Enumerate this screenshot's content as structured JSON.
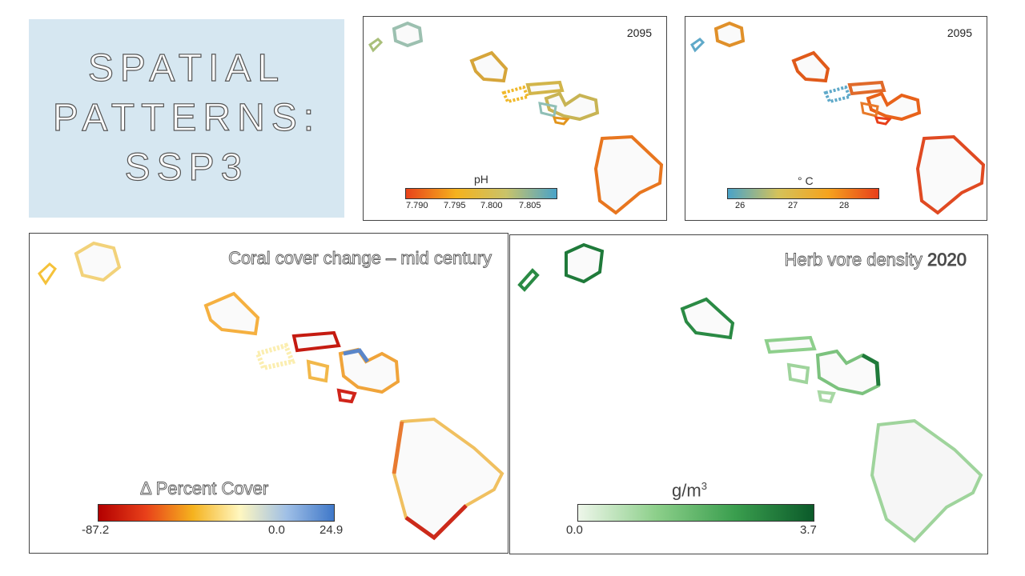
{
  "slide": {
    "title_lines": [
      "SPATIAL",
      "PATTERNS:",
      "SSP3"
    ]
  },
  "panels": {
    "ph": {
      "year": "2095",
      "colorbar_label": "pH",
      "ticks": [
        "7.790",
        "7.795",
        "7.800",
        "7.805"
      ],
      "colors": [
        "#e8421a",
        "#f5b21e",
        "#c9c36a",
        "#4aa3c8"
      ]
    },
    "temp": {
      "year": "2095",
      "colorbar_label": "° C",
      "ticks": [
        "26",
        "27",
        "28"
      ],
      "colors": [
        "#4aa3c8",
        "#d4c25a",
        "#f5a31e",
        "#e8401a"
      ]
    },
    "coral": {
      "title": "Coral cover change – mid century",
      "colorbar_label": "Δ Percent Cover",
      "ticks": [
        "-87.2",
        "0.0",
        "24.9"
      ],
      "colors": [
        "#b30000",
        "#e8401a",
        "#f5b21e",
        "#fff7c0",
        "#9fbfe6",
        "#3f78c9"
      ]
    },
    "herb": {
      "title_part1": "Herb vore density",
      "title_part2": "2020",
      "colorbar_label": "g/m",
      "colorbar_label_sup": "3",
      "ticks": [
        "0.0",
        "3.7"
      ],
      "colors": [
        "#eef6ea",
        "#8ccf8a",
        "#3a9e4e",
        "#0b5a2a"
      ]
    }
  }
}
